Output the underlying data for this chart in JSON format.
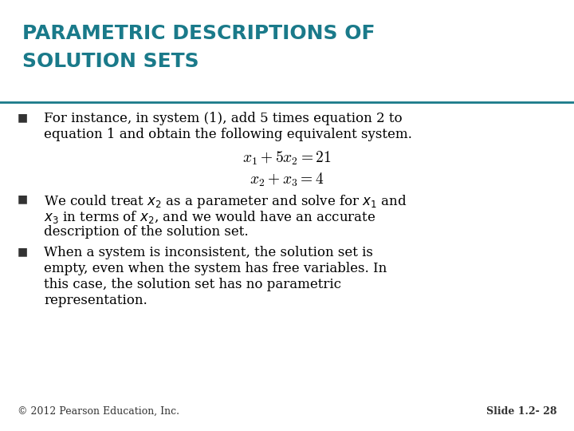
{
  "title_line1": "PARAMETRIC DESCRIPTIONS OF",
  "title_line2": "SOLUTION SETS",
  "title_color": "#1A7A8A",
  "title_fontsize": 18,
  "divider_color": "#1A7A8A",
  "background_color": "#FFFFFF",
  "bullet_marker": "■",
  "bullet_fontsize": 10,
  "body_fontsize": 12,
  "math_fontsize": 14,
  "footer_fontsize": 9,
  "footer_left": "© 2012 Pearson Education, Inc.",
  "footer_right": "Slide 1.2- 28",
  "bullet1_text1": "For instance, in system (1), add 5 times equation 2 to",
  "bullet1_text2": "equation 1 and obtain the following equivalent system.",
  "eq1": "$x_1 + 5x_2 = 21$",
  "eq2": "$x_2 + x_3 = 4$",
  "bullet2_text1": "We could treat $x_2$ as a parameter and solve for $x_1$ and",
  "bullet2_text2": "$x_3$ in terms of $x_2$, and we would have an accurate",
  "bullet2_text3": "description of the solution set.",
  "bullet3_text1": "When a system is inconsistent, the solution set is",
  "bullet3_text2": "empty, even when the system has free variables. In",
  "bullet3_text3": "this case, the solution set has no parametric",
  "bullet3_text4": "representation."
}
